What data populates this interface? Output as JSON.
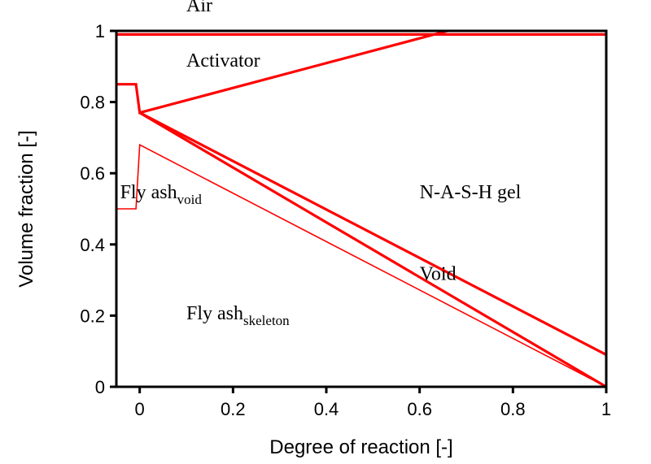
{
  "chart_data": {
    "type": "line",
    "title": "",
    "xlabel": "Degree of reaction [-]",
    "ylabel": "Volume fraction [-]",
    "xlim": [
      -0.05,
      1
    ],
    "ylim": [
      0,
      1
    ],
    "xticks": [
      0,
      0.2,
      0.4,
      0.6,
      0.8,
      1
    ],
    "xtick_labels": [
      "0",
      "0.2",
      "0.4",
      "0.6",
      "0.8",
      "1"
    ],
    "yticks": [
      0,
      0.2,
      0.4,
      0.6,
      0.8,
      1
    ],
    "ytick_labels": [
      "0",
      "0.2",
      "0.4",
      "0.6",
      "0.8",
      "1"
    ],
    "grid": false,
    "color": "#ff0000",
    "series": [
      {
        "name": "air-boundary",
        "width": "thick",
        "x": [
          -0.05,
          1
        ],
        "y": [
          0.99,
          0.99
        ]
      },
      {
        "name": "activator-boundary",
        "width": "thick",
        "x": [
          -0.05,
          -0.008,
          0,
          0.66
        ],
        "y": [
          0.85,
          0.85,
          0.77,
          1.0
        ]
      },
      {
        "name": "gel-upper-boundary",
        "width": "thick",
        "x": [
          0,
          1
        ],
        "y": [
          0.77,
          0.09
        ]
      },
      {
        "name": "void-boundary",
        "width": "thick",
        "x": [
          0,
          1
        ],
        "y": [
          0.77,
          0
        ]
      },
      {
        "name": "fly-ash-void-boundary",
        "width": "thin",
        "x": [
          -0.05,
          -0.008,
          0,
          1
        ],
        "y": [
          0.5,
          0.5,
          0.68,
          0
        ]
      }
    ],
    "annotations": [
      {
        "text": "Air",
        "sub": "",
        "x": 0.1,
        "y": 1.055
      },
      {
        "text": "Activator",
        "sub": "",
        "x": 0.1,
        "y": 0.9
      },
      {
        "text": "Fly ash",
        "sub": "void",
        "x": -0.042,
        "y": 0.53
      },
      {
        "text": "N-A-S-H gel",
        "sub": "",
        "x": 0.6,
        "y": 0.53
      },
      {
        "text": "Void",
        "sub": "",
        "x": 0.6,
        "y": 0.3
      },
      {
        "text": "Fly ash",
        "sub": "skeleton",
        "x": 0.1,
        "y": 0.19
      }
    ]
  }
}
